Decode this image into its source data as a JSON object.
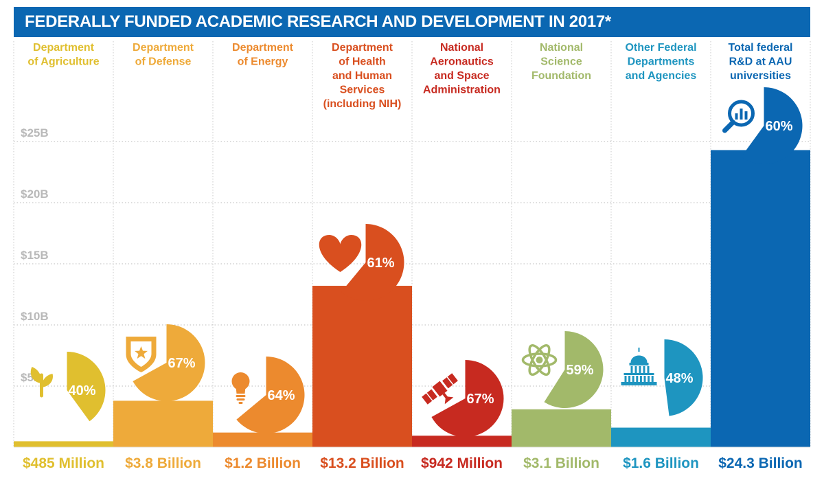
{
  "title": "FEDERALLY FUNDED ACADEMIC RESEARCH AND DEVELOPMENT IN 2017*",
  "chart_data": {
    "type": "bar",
    "title": "FEDERALLY FUNDED ACADEMIC RESEARCH AND DEVELOPMENT IN 2017*",
    "ylim": [
      0,
      27.5
    ],
    "yticks": [
      {
        "value": 5,
        "label": "$5B"
      },
      {
        "value": 10,
        "label": "$10B"
      },
      {
        "value": 15,
        "label": "$15B"
      },
      {
        "value": 20,
        "label": "$20B"
      },
      {
        "value": 25,
        "label": "$25B"
      }
    ],
    "grid": true,
    "categories": [
      {
        "name": "agriculture",
        "label_lines": [
          "Department",
          "of Agriculture"
        ],
        "value": 0.485,
        "value_label": "$485 Million",
        "percent": 40,
        "percent_label": "40%",
        "color": "#e0bf2f",
        "icon": "sprout-icon"
      },
      {
        "name": "defense",
        "label_lines": [
          "Department",
          "of Defense"
        ],
        "value": 3.8,
        "value_label": "$3.8 Billion",
        "percent": 67,
        "percent_label": "67%",
        "color": "#eeaa3a",
        "icon": "shield-star-icon"
      },
      {
        "name": "energy",
        "label_lines": [
          "Department",
          "of Energy"
        ],
        "value": 1.2,
        "value_label": "$1.2 Billion",
        "percent": 64,
        "percent_label": "64%",
        "color": "#ec8a2e",
        "icon": "lightbulb-icon"
      },
      {
        "name": "health",
        "label_lines": [
          "Department",
          "of Health",
          "and Human",
          "Services",
          "(including NIH)"
        ],
        "value": 13.2,
        "value_label": "$13.2 Billion",
        "percent": 61,
        "percent_label": "61%",
        "color": "#d94f1f",
        "icon": "heart-icon"
      },
      {
        "name": "nasa",
        "label_lines": [
          "National",
          "Aeronautics",
          "and Space",
          "Administration"
        ],
        "value": 0.942,
        "value_label": "$942 Million",
        "percent": 67,
        "percent_label": "67%",
        "color": "#c72a20",
        "icon": "satellite-icon"
      },
      {
        "name": "nsf",
        "label_lines": [
          "National",
          "Science",
          "Foundation"
        ],
        "value": 3.1,
        "value_label": "$3.1 Billion",
        "percent": 59,
        "percent_label": "59%",
        "color": "#a2b96a",
        "icon": "atom-icon"
      },
      {
        "name": "other",
        "label_lines": [
          "Other Federal",
          "Departments",
          "and Agencies"
        ],
        "value": 1.6,
        "value_label": "$1.6 Billion",
        "percent": 48,
        "percent_label": "48%",
        "color": "#1e95c0",
        "icon": "capitol-icon"
      },
      {
        "name": "total",
        "label_lines": [
          "Total federal",
          "R&D at AAU",
          "universities"
        ],
        "value": 24.3,
        "value_label": "$24.3 Billion",
        "percent": 60,
        "percent_label": "60%",
        "color": "#0b67b2",
        "icon": "magnifier-chart-icon"
      }
    ]
  }
}
